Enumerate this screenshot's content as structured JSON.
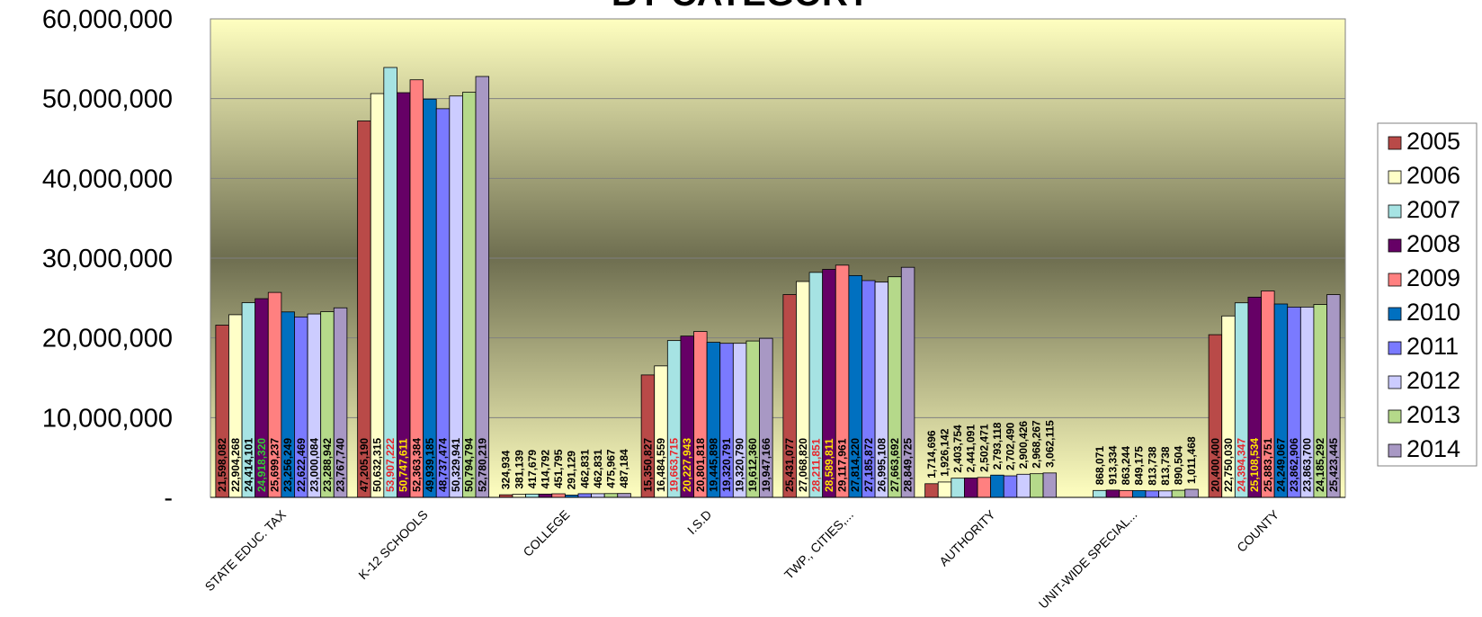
{
  "chart_data": {
    "type": "bar",
    "title": "BY CATEGORY",
    "xlabel": "",
    "ylabel": "",
    "ylim": [
      0,
      60000000
    ],
    "yticks": [
      0,
      10000000,
      20000000,
      30000000,
      40000000,
      50000000,
      60000000
    ],
    "ytick_labels": [
      "-",
      "10,000,000",
      "20,000,000",
      "30,000,000",
      "40,000,000",
      "50,000,000",
      "60,000,000"
    ],
    "grid": true,
    "legend_position": "right",
    "categories": [
      "STATE EDUC. TAX",
      "K-12 SCHOOLS",
      "COLLEGE",
      "I.S.D",
      "TWP., CITIES,...",
      "AUTHORITY",
      "UNIT-WIDE SPECIAL...",
      "COUNTY"
    ],
    "series": [
      {
        "name": "2005",
        "color": "#b94a48",
        "values": [
          21598082,
          47205190,
          324934,
          15350827,
          25431077,
          1714696,
          0,
          20400400
        ]
      },
      {
        "name": "2006",
        "color": "#ffffc8",
        "values": [
          22904268,
          50632315,
          381139,
          16484559,
          27068820,
          1926142,
          0,
          22750030
        ]
      },
      {
        "name": "2007",
        "color": "#a6e3e3",
        "values": [
          24414101,
          53907222,
          417679,
          19663715,
          28211851,
          2403754,
          868071,
          24394347
        ]
      },
      {
        "name": "2008",
        "color": "#660066",
        "values": [
          24918320,
          50747611,
          414792,
          20227943,
          28589811,
          2441091,
          913334,
          25108534
        ]
      },
      {
        "name": "2009",
        "color": "#ff8080",
        "values": [
          25699237,
          52363384,
          451795,
          20801818,
          29117961,
          2502471,
          863244,
          25883751
        ]
      },
      {
        "name": "2010",
        "color": "#0070c0",
        "values": [
          23256249,
          49939185,
          291129,
          19445898,
          27814220,
          2793118,
          849175,
          24249067
        ]
      },
      {
        "name": "2011",
        "color": "#7a7aff",
        "values": [
          22622469,
          48737474,
          462831,
          19320791,
          27185872,
          2702490,
          813738,
          23862906
        ]
      },
      {
        "name": "2012",
        "color": "#ccccff",
        "values": [
          23000084,
          50329941,
          462831,
          19320790,
          26995108,
          2900426,
          813738,
          23863700
        ]
      },
      {
        "name": "2013",
        "color": "#b5d98a",
        "values": [
          23288942,
          50794794,
          475967,
          19612360,
          27663692,
          2968267,
          890504,
          24185292
        ]
      },
      {
        "name": "2014",
        "color": "#a898c4",
        "values": [
          23767740,
          52780219,
          487184,
          19947166,
          28849725,
          3062115,
          1011468,
          25423445
        ]
      }
    ],
    "data_labels": [
      [
        "21,598,082",
        "47,205,190",
        "324,934",
        "15,350,827",
        "25,431,077",
        "1,714,696",
        "",
        "20,400,400"
      ],
      [
        "22,904,268",
        "50,632,315",
        "381,139",
        "16,484,559",
        "27,068,820",
        "1,926,142",
        "",
        "22,750,030"
      ],
      [
        "24,414,101",
        "53,907,222",
        "417,679",
        "19,663,715",
        "28,211,851",
        "2,403,754",
        "868,071",
        "24,394,347"
      ],
      [
        "24,918,320",
        "50,747,611",
        "414,792",
        "20,227,943",
        "28,589,811",
        "2,441,091",
        "913,334",
        "25,108,534"
      ],
      [
        "25,699,237",
        "52,363,384",
        "451,795",
        "20,801,818",
        "29,117,961",
        "2,502,471",
        "863,244",
        "25,883,751"
      ],
      [
        "23,256,249",
        "49,939,185",
        "291,129",
        "19,445,898",
        "27,814,220",
        "2,793,118",
        "849,175",
        "24,249,067"
      ],
      [
        "22,622,469",
        "48,737,474",
        "462,831",
        "19,320,791",
        "27,185,872",
        "2,702,490",
        "813,738",
        "23,862,906"
      ],
      [
        "23,000,084",
        "50,329,941",
        "462,831",
        "19,320,790",
        "26,995,108",
        "2,900,426",
        "813,738",
        "23,863,700"
      ],
      [
        "23,288,942",
        "50,794,794",
        "475,967",
        "19,612,360",
        "27,663,692",
        "2,968,267",
        "890,504",
        "24,185,292"
      ],
      [
        "23,767,740",
        "52,780,219",
        "487,184",
        "19,947,166",
        "28,849,725",
        "3,062,115",
        "1,011,468",
        "25,423,445"
      ]
    ],
    "label_colors": {
      "default": "#000000",
      "highlight_red": "#e8262b",
      "highlight_yellow": "#ffe600",
      "highlight_green": "#33cc33"
    },
    "highlighted_labels": [
      {
        "series": 2,
        "category": 1,
        "color": "highlight_red"
      },
      {
        "series": 3,
        "category": 1,
        "color": "highlight_yellow"
      },
      {
        "series": 2,
        "category": 3,
        "color": "highlight_red"
      },
      {
        "series": 3,
        "category": 3,
        "color": "highlight_yellow"
      },
      {
        "series": 2,
        "category": 4,
        "color": "highlight_red"
      },
      {
        "series": 3,
        "category": 4,
        "color": "highlight_yellow"
      },
      {
        "series": 2,
        "category": 7,
        "color": "highlight_red"
      },
      {
        "series": 3,
        "category": 7,
        "color": "highlight_yellow"
      },
      {
        "series": 3,
        "category": 0,
        "color": "highlight_green"
      }
    ],
    "plot_background": {
      "top": "#ffffc0",
      "middle": "#6e6e50",
      "bottom": "#ffffc0"
    }
  }
}
